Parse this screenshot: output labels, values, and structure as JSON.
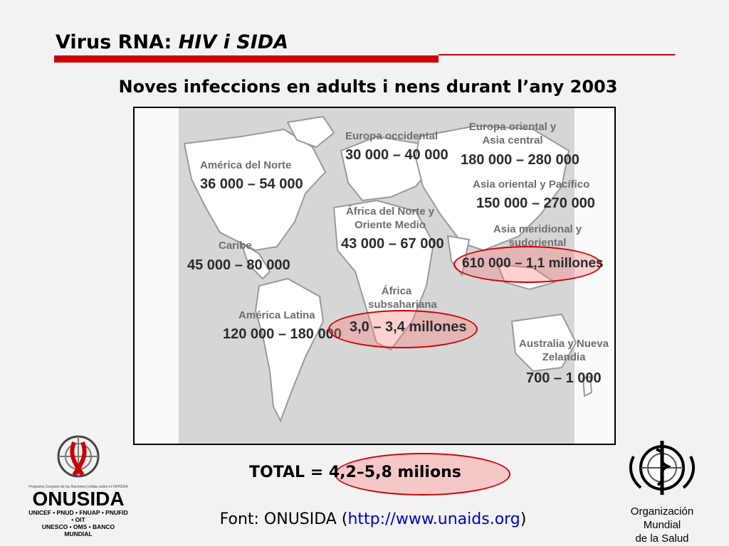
{
  "title": {
    "prefix": "Virus RNA: ",
    "italic": "HIV i SIDA"
  },
  "subtitle": "Noves infeccions en adults i nens durant l’any 2003",
  "map": {
    "regions": [
      {
        "id": "north-america",
        "label": "América del Norte",
        "value": "36 000 – 54 000"
      },
      {
        "id": "western-europe",
        "label": "Europa occidental",
        "value": "30 000 – 40 000"
      },
      {
        "id": "eastern-europe",
        "label": "Europa oriental y Asia central",
        "value": "180 000 – 280 000"
      },
      {
        "id": "east-asia",
        "label": "Asia oriental y Pacífico",
        "value": "150 000 – 270 000"
      },
      {
        "id": "north-africa",
        "label": "África del Norte y Oriente Medio",
        "value": "43 000 – 67 000"
      },
      {
        "id": "south-asia",
        "label": "Asia meridional y sudoriental",
        "value": "610 000 – 1,1 millones"
      },
      {
        "id": "caribbean",
        "label": "Caribe",
        "value": "45 000 – 80 000"
      },
      {
        "id": "sub-saharan",
        "label": "África subsahariana",
        "value": "3,0 – 3,4 millones"
      },
      {
        "id": "latin-america",
        "label": "América Latina",
        "value": "120 000 – 180 000"
      },
      {
        "id": "oceania",
        "label": "Australia y Nueva Zelandia",
        "value": "700 – 1 000"
      }
    ],
    "highlight_color": "#d00000"
  },
  "total": {
    "label": "TOTAL = ",
    "value": "4,2–5,8 milions"
  },
  "source": {
    "prefix": "Font: ONUSIDA (",
    "link": "http://www.unaids.org",
    "suffix": ")"
  },
  "logos": {
    "onusida": {
      "small": "Programa Conjunto de las Naciones Unidas sobre el VIH/SIDA",
      "name": "ONUSIDA",
      "agencies_line1": "UNICEF • PNUD • FNUAP • PNUFID • OIT",
      "agencies_line2": "UNESCO • OMS • BANCO MUNDIAL"
    },
    "who": {
      "line1": "Organización Mundial",
      "line2": "de la Salud"
    }
  },
  "accent_color": "#d00000"
}
